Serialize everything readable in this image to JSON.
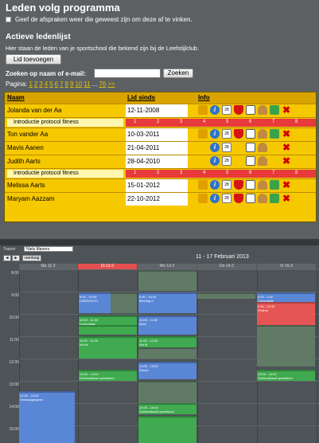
{
  "program": {
    "title": "Leden volg programma",
    "checkbox_label": "Geef de afspraken weer die geweest zijn om deze af te vinken.",
    "section_title": "Actieve ledenlijst",
    "description": "Hier staan de leden van je sportschool die bekend zijn bij de Leefstijlclub.",
    "add_button": "Lid toevoegen",
    "search_label": "Zoeken op naam of e-mail:",
    "search_value": "",
    "search_button": "Zoeken",
    "pager_label": "Pagina:",
    "pages": [
      "1",
      "2",
      "3",
      "4",
      "5",
      "6",
      "7",
      "8",
      "9",
      "10",
      "11",
      "...",
      "76",
      ">>"
    ],
    "headers": {
      "name": "Naam",
      "since": "Lid sinds",
      "info": "Info"
    },
    "members": [
      {
        "name": "Jolanda van der Aa",
        "since": "12-11-2008"
      },
      {
        "name": "Ton vander Aa",
        "since": "10-03-2011"
      },
      {
        "name": "Mavis Aanen",
        "since": "21-04-2011"
      },
      {
        "name": "Judith Aarts",
        "since": "28-04-2010"
      },
      {
        "name": "Melissa Aarts",
        "since": "15-01-2012"
      },
      {
        "name": "Maryam Aazzam",
        "since": "22-10-2012"
      }
    ],
    "protocol_label": "Introductie protocol fitness",
    "steps": [
      "1",
      "2",
      "3",
      "4",
      "5",
      "6",
      "7",
      "8"
    ],
    "calendar_icon_text": "28"
  },
  "calendar": {
    "trainer_label": "Trainer",
    "trainer_value": "Niels Maners",
    "prev": "◄",
    "next": "►",
    "today_btn": "vandaag",
    "range": "11 - 17 Februari 2013",
    "days": [
      "Ma 11-2",
      "Di 12-2",
      "Wo 13-2",
      "Do 14-2",
      "Vr 15-2"
    ],
    "hours": [
      "8:00",
      "9:00",
      "10:00",
      "11:00",
      "12:00",
      "13:00",
      "14:00",
      "15:00"
    ],
    "events": [
      {
        "t": "9:00 - 10:00",
        "d": "CARDIO/VTL"
      },
      {
        "t": "9:00 - 10:00",
        "d": "Meeting C"
      },
      {
        "t": "10:00 - 11:00",
        "d": "Meet"
      },
      {
        "t": "10:00 - 11:00",
        "d": "Consultatie"
      },
      {
        "t": "11:00 - 11:30",
        "d": "Wo M"
      },
      {
        "t": "11:00 - 12:00",
        "d": "Wo M"
      },
      {
        "t": "12:00 - 13:00",
        "d": "Sauna"
      },
      {
        "t": "13:00 - 14:00",
        "d": "Ochtendkaart opbrekken"
      },
      {
        "t": "13:00 - 14:00",
        "d": "Ochtendkaart opbrekken"
      },
      {
        "t": "14:00 - 15:00",
        "d": "Verkoopgesprek"
      },
      {
        "t": "14:00 - 15:00",
        "d": "Ochtendkaart opbrekken"
      },
      {
        "t": "9:00 - 9:30",
        "d": "Consultatie"
      },
      {
        "t": "9:30 - 10:30",
        "d": "Fitdiner"
      }
    ]
  }
}
